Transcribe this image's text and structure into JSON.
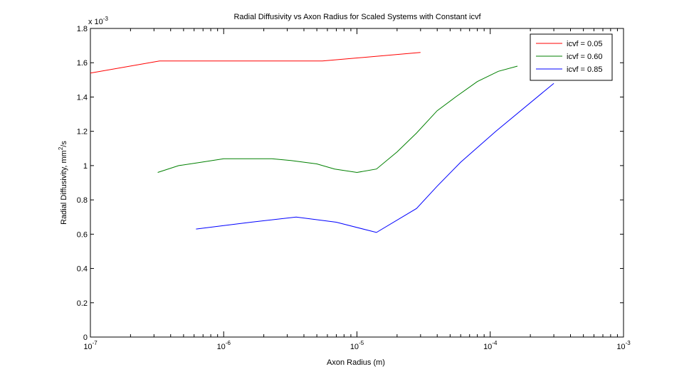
{
  "chart_data": {
    "type": "line",
    "title": "Radial Diffusivity vs Axon Radius for Scaled Systems with Constant icvf",
    "xlabel": "Axon Radius (m)",
    "ylabel_main": "Radial Diffusivity, mm",
    "ylabel_sup": "2",
    "ylabel_tail": "/s",
    "y_multiplier_base": "x 10",
    "y_multiplier_exp": "-3",
    "xscale": "log",
    "xlim": [
      1e-07,
      0.001
    ],
    "ylim": [
      0,
      0.0018
    ],
    "grid": false,
    "legend_position": "top-right",
    "x_ticks": [
      {
        "value": 1e-07,
        "base": "10",
        "exp": "-7"
      },
      {
        "value": 1e-06,
        "base": "10",
        "exp": "-6"
      },
      {
        "value": 1e-05,
        "base": "10",
        "exp": "-5"
      },
      {
        "value": 0.0001,
        "base": "10",
        "exp": "-4"
      },
      {
        "value": 0.001,
        "base": "10",
        "exp": "-3"
      }
    ],
    "y_ticks": [
      {
        "value": 0,
        "label": "0"
      },
      {
        "value": 0.0002,
        "label": "0.2"
      },
      {
        "value": 0.0004,
        "label": "0.4"
      },
      {
        "value": 0.0006,
        "label": "0.6"
      },
      {
        "value": 0.0008,
        "label": "0.8"
      },
      {
        "value": 0.001,
        "label": "1"
      },
      {
        "value": 0.0012,
        "label": "1.2"
      },
      {
        "value": 0.0014,
        "label": "1.4"
      },
      {
        "value": 0.0016,
        "label": "1.6"
      },
      {
        "value": 0.0018,
        "label": "1.8"
      }
    ],
    "series": [
      {
        "name": "icvf = 0.05",
        "color": "#ff0000",
        "x": [
          1e-07,
          3.3e-07,
          5.5e-06,
          3e-05
        ],
        "y": [
          0.00154,
          0.00161,
          0.00161,
          0.00166
        ]
      },
      {
        "name": "icvf = 0.60",
        "color": "#008000",
        "x": [
          3.2e-07,
          4.6e-07,
          6.8e-07,
          1e-06,
          1.4e-06,
          2.3e-06,
          3.2e-06,
          5e-06,
          6.8e-06,
          1e-05,
          1.4e-05,
          2e-05,
          2.8e-05,
          4e-05,
          5.5e-05,
          8e-05,
          0.000115,
          0.00016
        ],
        "y": [
          0.00096,
          0.001,
          0.00102,
          0.00104,
          0.00104,
          0.00104,
          0.00103,
          0.00101,
          0.00098,
          0.00096,
          0.00098,
          0.00108,
          0.00119,
          0.00132,
          0.0014,
          0.00149,
          0.00155,
          0.00158
        ]
      },
      {
        "name": "icvf = 0.85",
        "color": "#0000ff",
        "x": [
          6.2e-07,
          1e-06,
          1.6e-06,
          3.5e-06,
          7e-06,
          1.4e-05,
          2.8e-05,
          4e-05,
          6e-05,
          0.00011,
          0.0003
        ],
        "y": [
          0.00063,
          0.00065,
          0.00067,
          0.0007,
          0.00067,
          0.00061,
          0.00075,
          0.00088,
          0.00102,
          0.0012,
          0.00148
        ]
      }
    ]
  }
}
